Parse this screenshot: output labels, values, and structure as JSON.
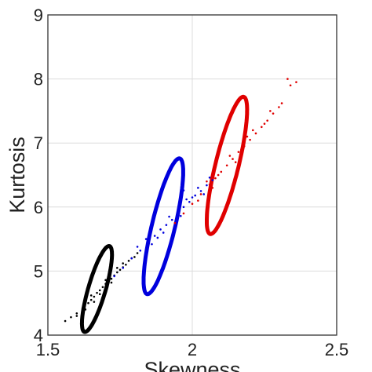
{
  "chart_data": {
    "type": "scatter",
    "xlabel": "Skewness",
    "ylabel": "Kurtosis",
    "xlim": [
      1.5,
      2.5
    ],
    "ylim": [
      4,
      9
    ],
    "xticks": [
      {
        "value": 1.5,
        "label": "1.5"
      },
      {
        "value": 2,
        "label": "2"
      },
      {
        "value": 2.5,
        "label": "2.5"
      }
    ],
    "yticks": [
      {
        "value": 4,
        "label": "4"
      },
      {
        "value": 5,
        "label": "5"
      },
      {
        "value": 6,
        "label": "6"
      },
      {
        "value": 7,
        "label": "7"
      },
      {
        "value": 8,
        "label": "8"
      },
      {
        "value": 9,
        "label": "9"
      }
    ],
    "grid": true,
    "legend": "none",
    "series": [
      {
        "color": "#000000",
        "ellipse": {
          "center": [
            1.67,
            4.72
          ],
          "semi_axes": [
            0.155,
            0.03
          ],
          "angle_deg": 73.8
        },
        "points": [
          [
            1.56,
            4.22
          ],
          [
            1.58,
            4.28
          ],
          [
            1.6,
            4.34
          ],
          [
            1.62,
            4.42
          ],
          [
            1.64,
            4.5
          ],
          [
            1.65,
            4.55
          ],
          [
            1.66,
            4.6
          ],
          [
            1.67,
            4.66
          ],
          [
            1.68,
            4.7
          ],
          [
            1.69,
            4.75
          ],
          [
            1.7,
            4.8
          ],
          [
            1.71,
            4.84
          ],
          [
            1.72,
            4.88
          ],
          [
            1.73,
            4.93
          ],
          [
            1.74,
            4.98
          ],
          [
            1.75,
            5.02
          ],
          [
            1.76,
            5.06
          ],
          [
            1.77,
            5.1
          ],
          [
            1.78,
            5.16
          ],
          [
            1.79,
            5.2
          ],
          [
            1.63,
            4.4
          ],
          [
            1.65,
            4.62
          ],
          [
            1.68,
            4.64
          ],
          [
            1.7,
            4.86
          ],
          [
            1.72,
            4.82
          ],
          [
            1.74,
            5.05
          ],
          [
            1.6,
            4.3
          ],
          [
            1.66,
            4.52
          ],
          [
            1.71,
            4.9
          ],
          [
            1.76,
            5.12
          ],
          [
            1.8,
            5.22
          ],
          [
            1.81,
            5.28
          ]
        ]
      },
      {
        "color": "#0000dd",
        "ellipse": {
          "center": [
            1.9,
            5.7
          ],
          "semi_axes": [
            0.242,
            0.04
          ],
          "angle_deg": 76.5
        },
        "points": [
          [
            1.73,
            4.92
          ],
          [
            1.76,
            5.05
          ],
          [
            1.79,
            5.2
          ],
          [
            1.82,
            5.32
          ],
          [
            1.85,
            5.45
          ],
          [
            1.87,
            5.55
          ],
          [
            1.89,
            5.65
          ],
          [
            1.91,
            5.72
          ],
          [
            1.93,
            5.8
          ],
          [
            1.95,
            5.92
          ],
          [
            1.97,
            6.0
          ],
          [
            1.99,
            6.08
          ],
          [
            2.01,
            6.18
          ],
          [
            2.03,
            6.25
          ],
          [
            2.05,
            6.34
          ],
          [
            2.07,
            6.42
          ],
          [
            1.84,
            5.5
          ],
          [
            1.88,
            5.52
          ],
          [
            1.92,
            5.85
          ],
          [
            1.96,
            5.86
          ],
          [
            2.0,
            6.15
          ],
          [
            2.04,
            6.2
          ],
          [
            1.81,
            5.38
          ],
          [
            1.86,
            5.42
          ],
          [
            1.94,
            5.75
          ],
          [
            1.98,
            6.12
          ],
          [
            2.02,
            6.3
          ],
          [
            2.06,
            6.46
          ],
          [
            1.97,
            6.26
          ],
          [
            1.9,
            5.6
          ]
        ]
      },
      {
        "color": "#e00000",
        "ellipse": {
          "center": [
            2.12,
            6.65
          ],
          "semi_axes": [
            0.245,
            0.04
          ],
          "angle_deg": 76.3
        },
        "points": [
          [
            1.94,
            5.75
          ],
          [
            1.97,
            5.9
          ],
          [
            2.0,
            6.05
          ],
          [
            2.03,
            6.2
          ],
          [
            2.06,
            6.35
          ],
          [
            2.08,
            6.45
          ],
          [
            2.1,
            6.55
          ],
          [
            2.12,
            6.65
          ],
          [
            2.14,
            6.75
          ],
          [
            2.16,
            6.86
          ],
          [
            2.18,
            6.95
          ],
          [
            2.2,
            7.05
          ],
          [
            2.22,
            7.15
          ],
          [
            2.24,
            7.25
          ],
          [
            2.26,
            7.35
          ],
          [
            2.28,
            7.46
          ],
          [
            2.3,
            7.56
          ],
          [
            2.05,
            6.4
          ],
          [
            2.09,
            6.5
          ],
          [
            2.13,
            6.8
          ],
          [
            2.17,
            6.9
          ],
          [
            2.21,
            7.2
          ],
          [
            2.25,
            7.3
          ],
          [
            2.02,
            6.1
          ],
          [
            2.07,
            6.3
          ],
          [
            2.15,
            6.7
          ],
          [
            2.19,
            7.1
          ],
          [
            2.27,
            7.5
          ],
          [
            2.31,
            7.62
          ],
          [
            2.34,
            7.9
          ],
          [
            2.36,
            7.95
          ],
          [
            2.33,
            8.0
          ]
        ]
      }
    ]
  }
}
